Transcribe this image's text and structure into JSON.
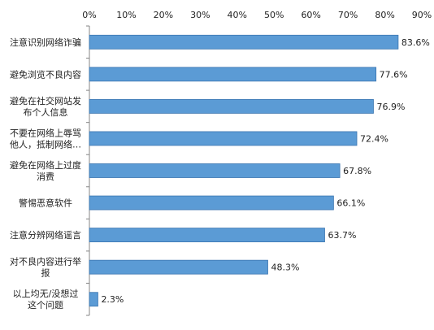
{
  "chart_data": {
    "type": "bar",
    "orientation": "horizontal",
    "title": "",
    "xlabel": "",
    "ylabel": "",
    "categories": [
      [
        "注意识别网络诈骗"
      ],
      [
        "避免浏览不良内容"
      ],
      [
        "避免在社交网站发",
        "布个人信息"
      ],
      [
        "不要在网络上辱骂",
        "他人，抵制网络…"
      ],
      [
        "避免在网络上过度",
        "消费"
      ],
      [
        "警惕恶意软件"
      ],
      [
        "注意分辨网络谣言"
      ],
      [
        "对不良内容进行举",
        "报"
      ],
      [
        "以上均无/没想过",
        "这个问题"
      ]
    ],
    "values": [
      83.6,
      77.6,
      76.9,
      72.4,
      67.8,
      66.1,
      63.7,
      48.3,
      2.3
    ],
    "value_labels": [
      "83.6%",
      "77.6%",
      "76.9%",
      "72.4%",
      "67.8%",
      "66.1%",
      "63.7%",
      "48.3%",
      "2.3%"
    ],
    "xlim": [
      0,
      90
    ],
    "xticks": [
      0,
      10,
      20,
      30,
      40,
      50,
      60,
      70,
      80,
      90
    ],
    "xtick_labels": [
      "0%",
      "10%",
      "20%",
      "30%",
      "40%",
      "50%",
      "60%",
      "70%",
      "80%",
      "90%"
    ],
    "x_axis_position": "top",
    "grid": false,
    "legend": "none",
    "colors": {
      "bar_fill": "#5b9bd5",
      "bar_stroke": "#3a75b0",
      "axis": "#868686",
      "text": "#222222"
    }
  }
}
